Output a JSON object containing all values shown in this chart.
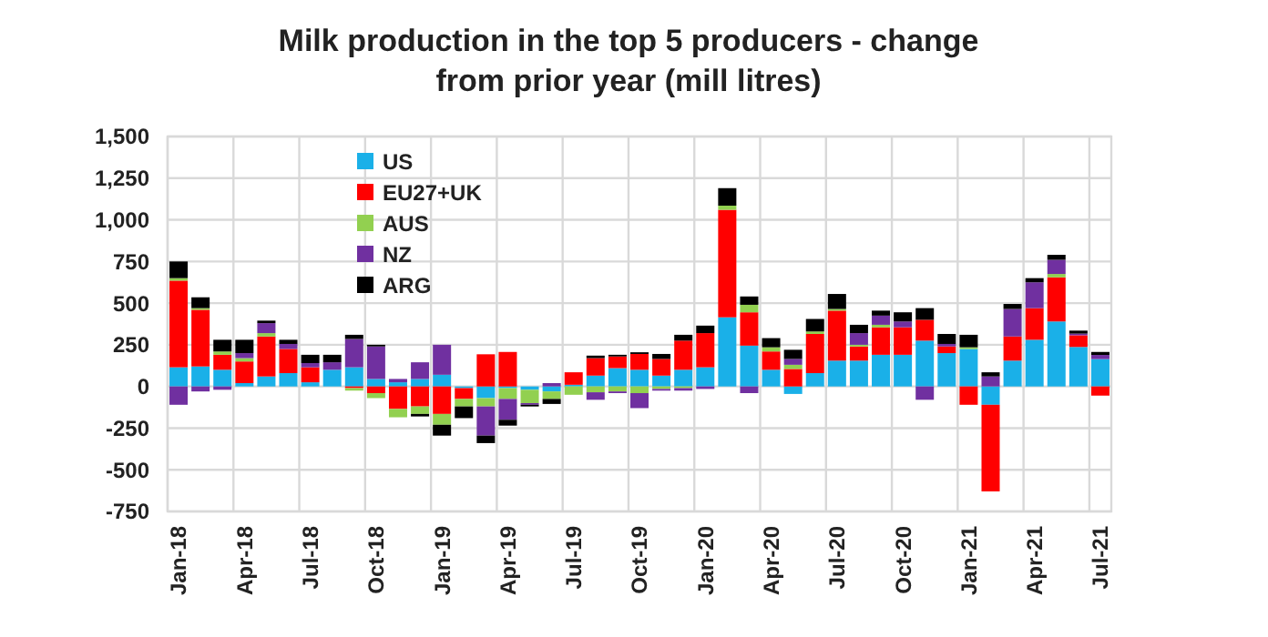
{
  "chart_data": {
    "type": "bar",
    "stacked": true,
    "title": "Milk production in the top 5 producers - change from prior year (mill litres)",
    "categories": [
      "Jan-18",
      null,
      null,
      "Apr-18",
      null,
      null,
      "Jul-18",
      null,
      null,
      "Oct-18",
      null,
      null,
      "Jan-19",
      null,
      null,
      "Apr-19",
      null,
      null,
      "Jul-19",
      null,
      null,
      "Oct-19",
      null,
      null,
      "Jan-20",
      null,
      null,
      "Apr-20",
      null,
      null,
      "Jul-20",
      null,
      null,
      "Oct-20",
      null,
      null,
      "Jan-21",
      null,
      null,
      "Apr-21",
      null,
      null,
      "Jul-21"
    ],
    "series": [
      {
        "name": "US",
        "color": "#1ab0e8",
        "values": [
          115,
          120,
          100,
          20,
          60,
          80,
          25,
          100,
          115,
          45,
          25,
          45,
          70,
          -10,
          -70,
          -10,
          -20,
          -30,
          10,
          65,
          110,
          100,
          65,
          100,
          115,
          415,
          245,
          100,
          -45,
          80,
          155,
          155,
          190,
          190,
          275,
          200,
          225,
          -110,
          155,
          280,
          390,
          237,
          164
        ]
      },
      {
        "name": "EU27+UK",
        "color": "#ff0000",
        "values": [
          520,
          340,
          90,
          130,
          240,
          145,
          90,
          0,
          -10,
          -40,
          -135,
          -120,
          -165,
          -65,
          193,
          207,
          0,
          0,
          75,
          105,
          70,
          95,
          100,
          175,
          205,
          645,
          200,
          110,
          105,
          235,
          300,
          85,
          165,
          165,
          125,
          40,
          -110,
          -520,
          145,
          190,
          265,
          70,
          -55
        ]
      },
      {
        "name": "AUS",
        "color": "#92d050",
        "values": [
          15,
          10,
          20,
          20,
          20,
          0,
          0,
          0,
          -15,
          -30,
          -50,
          -45,
          -65,
          -45,
          -50,
          -65,
          -80,
          -45,
          -50,
          -35,
          -30,
          -40,
          -15,
          -10,
          0,
          25,
          45,
          25,
          25,
          15,
          10,
          10,
          15,
          0,
          0,
          0,
          10,
          0,
          0,
          0,
          20,
          0,
          0
        ]
      },
      {
        "name": "NZ",
        "color": "#7030a0",
        "values": [
          -110,
          -30,
          -20,
          30,
          60,
          30,
          25,
          45,
          170,
          195,
          20,
          100,
          180,
          0,
          -175,
          -125,
          -10,
          20,
          0,
          -45,
          -10,
          -90,
          -10,
          -15,
          -15,
          0,
          -40,
          0,
          35,
          0,
          0,
          70,
          55,
          35,
          -80,
          15,
          0,
          60,
          165,
          155,
          85,
          10,
          25
        ]
      },
      {
        "name": "ARG",
        "color": "#000000",
        "values": [
          100,
          65,
          70,
          80,
          15,
          25,
          50,
          45,
          25,
          10,
          0,
          -15,
          -65,
          -70,
          -45,
          -35,
          -10,
          -30,
          0,
          15,
          10,
          10,
          30,
          35,
          45,
          105,
          50,
          55,
          55,
          75,
          90,
          50,
          30,
          55,
          70,
          60,
          75,
          25,
          30,
          25,
          30,
          18,
          18
        ]
      }
    ],
    "ylim": [
      -750,
      1500
    ],
    "yticks": [
      {
        "value": -750,
        "label": "-750"
      },
      {
        "value": -500,
        "label": "-500"
      },
      {
        "value": -250,
        "label": "-250"
      },
      0,
      250,
      500,
      750,
      {
        "value": 1000,
        "label": "1,000"
      },
      {
        "value": 1250,
        "label": "1,250"
      },
      {
        "value": 1500,
        "label": "1,500"
      }
    ],
    "grid": true,
    "legend": "top left"
  }
}
